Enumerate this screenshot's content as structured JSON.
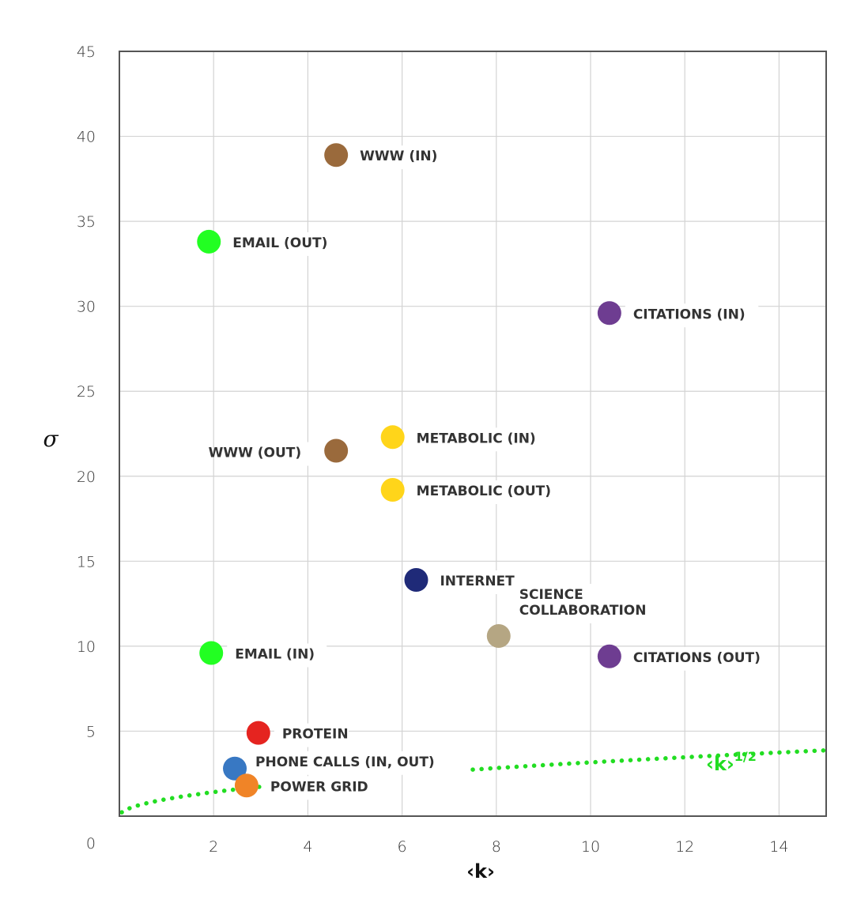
{
  "chart_data": {
    "type": "scatter",
    "title": "",
    "xlabel": "‹k›",
    "ylabel": "σ",
    "xlim": [
      0,
      15
    ],
    "ylim": [
      0,
      45
    ],
    "x_ticks": [
      2,
      4,
      6,
      8,
      10,
      12,
      14
    ],
    "y_ticks": [
      5,
      10,
      15,
      20,
      25,
      30,
      35,
      40,
      45
    ],
    "origin_label": "0",
    "grid": true,
    "points": [
      {
        "label": "WWW (IN)",
        "x": 4.6,
        "y": 38.9,
        "color": "#9A6A3C",
        "label_side": "right"
      },
      {
        "label": "EMAIL (OUT)",
        "x": 1.9,
        "y": 33.8,
        "color": "#22FF22",
        "label_side": "right"
      },
      {
        "label": "CITATIONS (IN)",
        "x": 10.4,
        "y": 29.6,
        "color": "#6E3D91",
        "label_side": "right"
      },
      {
        "label": "METABOLIC (IN)",
        "x": 5.8,
        "y": 22.3,
        "color": "#FFD51A",
        "label_side": "right"
      },
      {
        "label": "WWW (OUT)",
        "x": 4.6,
        "y": 21.5,
        "color": "#9A6A3C",
        "label_side": "left"
      },
      {
        "label": "METABOLIC (OUT)",
        "x": 5.8,
        "y": 19.2,
        "color": "#FFD51A",
        "label_side": "right"
      },
      {
        "label": "INTERNET",
        "x": 6.3,
        "y": 13.9,
        "color": "#1F2A78",
        "label_side": "right"
      },
      {
        "label": "SCIENCE\nCOLLABORATION",
        "x": 8.05,
        "y": 10.6,
        "color": "#B5A683",
        "label_side": "above-right"
      },
      {
        "label": "EMAIL (IN)",
        "x": 1.95,
        "y": 9.6,
        "color": "#22FF22",
        "label_side": "right"
      },
      {
        "label": "CITATIONS (OUT)",
        "x": 10.4,
        "y": 9.4,
        "color": "#6E3D91",
        "label_side": "right"
      },
      {
        "label": "PROTEIN",
        "x": 2.95,
        "y": 4.9,
        "color": "#E52420",
        "label_side": "right"
      },
      {
        "label": "PHONE CALLS (IN, OUT)",
        "x": 2.45,
        "y": 2.8,
        "color": "#3878C3",
        "label_side": "above-right"
      },
      {
        "label": "POWER GRID",
        "x": 2.7,
        "y": 1.8,
        "color": "#F08427",
        "label_side": "right"
      }
    ],
    "curve": {
      "label": "‹k›",
      "exponent": "1/2",
      "function": "sqrt",
      "style": "dotted",
      "color": "#22DD22",
      "gap_x": [
        3.05,
        7.5
      ]
    }
  }
}
